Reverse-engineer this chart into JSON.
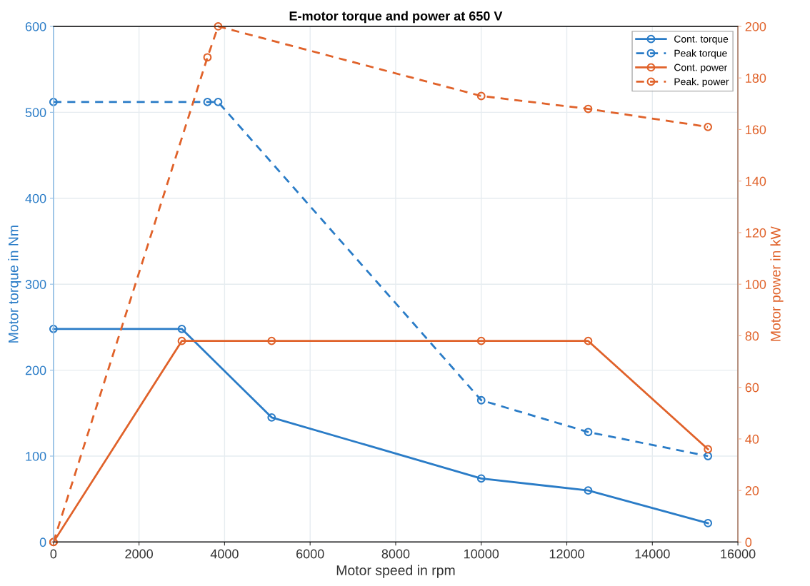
{
  "chart_data": {
    "type": "line",
    "title": "E-motor torque and power at 650 V",
    "xlabel": "Motor speed in rpm",
    "ylabel": "Motor torque in Nm",
    "y2label": "Motor power in kW",
    "series": [
      {
        "name": "Cont. torque",
        "color": "#2a7cc7",
        "line_style": "solid",
        "x": [
          0,
          3000,
          5100,
          10000,
          12500,
          15300
        ],
        "values": [
          248,
          248,
          145,
          74,
          60,
          22
        ]
      },
      {
        "name": "Peak torque",
        "color": "#2a7cc7",
        "line_style": "dashed",
        "x": [
          0,
          3600,
          3850,
          10000,
          12500,
          15300
        ],
        "values": [
          512,
          512,
          512,
          165,
          128,
          100
        ]
      },
      {
        "name": "Cont. power",
        "color": "#e0622a",
        "line_style": "solid",
        "axis": "y2",
        "x": [
          0,
          3000,
          5100,
          10000,
          12500,
          15300
        ],
        "values": [
          0,
          78,
          78,
          78,
          78,
          36
        ]
      },
      {
        "name": "Peak. power",
        "color": "#e0622a",
        "line_style": "dashed",
        "axis": "y2",
        "x": [
          0,
          3600,
          3850,
          10000,
          12500,
          15300
        ],
        "values": [
          0,
          188,
          200,
          173,
          168,
          161
        ]
      }
    ],
    "marker": "circle",
    "grid": true,
    "legend": "top right",
    "xlim": [
      0,
      16000
    ],
    "xticks": [
      0,
      2000,
      4000,
      6000,
      8000,
      10000,
      12000,
      14000,
      16000
    ],
    "ylim": [
      0,
      600
    ],
    "yticks": [
      0,
      100,
      200,
      300,
      400,
      500,
      600
    ],
    "y2lim": [
      0,
      200
    ],
    "y2ticks": [
      0,
      20,
      40,
      60,
      80,
      100,
      120,
      140,
      160,
      180,
      200
    ]
  }
}
